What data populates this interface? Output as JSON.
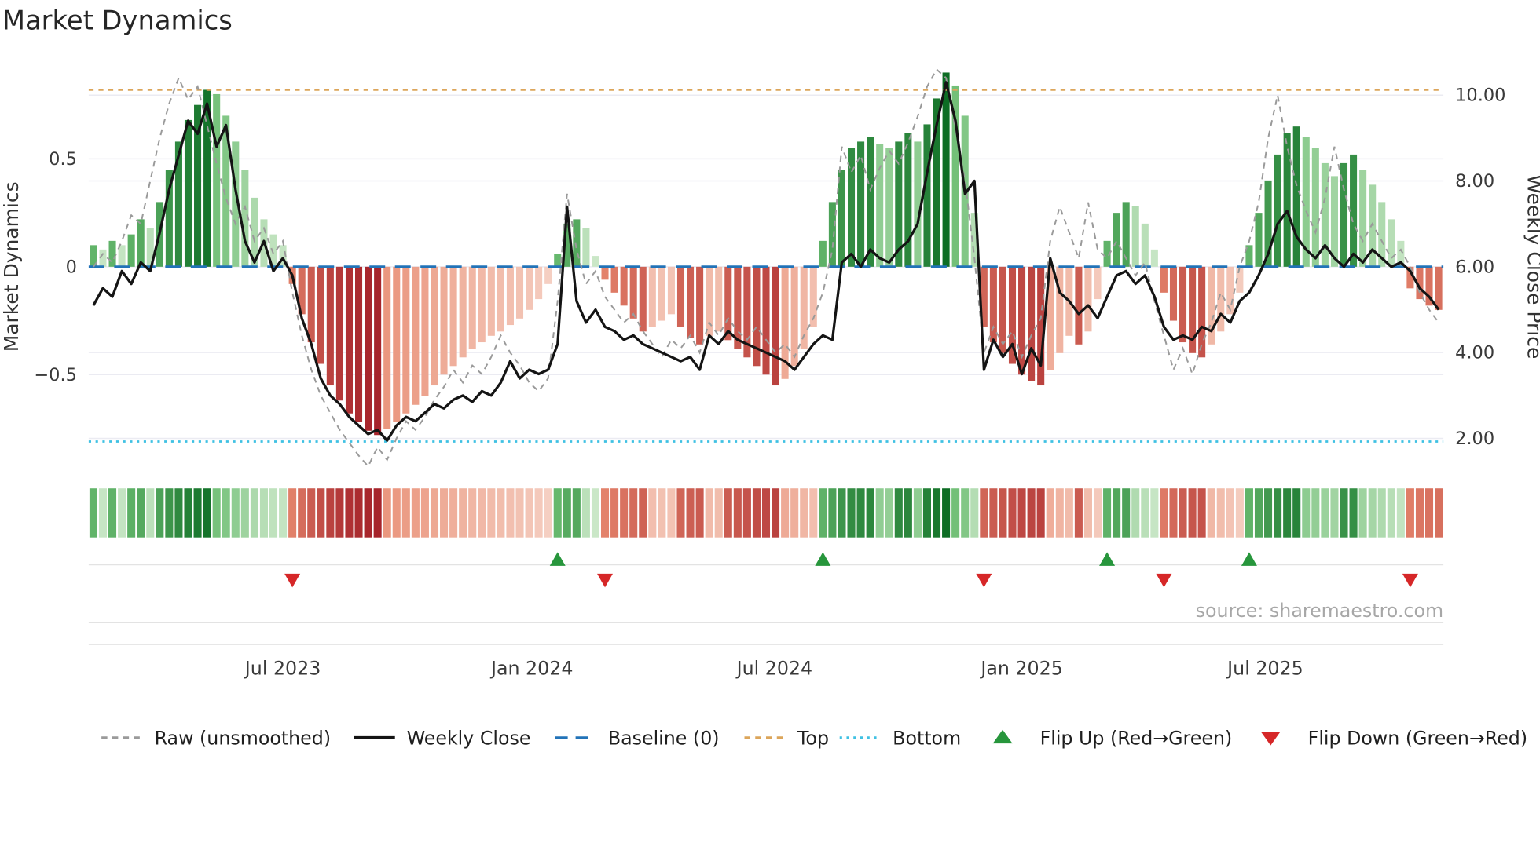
{
  "page_title": "Market Dynamics",
  "source_note": "source: sharemaestro.com",
  "axes": {
    "left_label": "Market Dynamics",
    "left_ticks": [
      {
        "label": "0.5",
        "value": 0.5
      },
      {
        "label": "0",
        "value": 0.0
      },
      {
        "label": "−0.5",
        "value": -0.5
      }
    ],
    "right_label": "Weekly Close Price",
    "right_ticks": [
      {
        "label": "10.00",
        "value": 10
      },
      {
        "label": "8.00",
        "value": 8
      },
      {
        "label": "6.00",
        "value": 6
      },
      {
        "label": "4.00",
        "value": 4
      },
      {
        "label": "2.00",
        "value": 2
      }
    ],
    "x_ticks": [
      {
        "label": "Jul 2023",
        "week": 20
      },
      {
        "label": "Jan 2024",
        "week": 46.3
      },
      {
        "label": "Jul 2024",
        "week": 71.9
      },
      {
        "label": "Jan 2025",
        "week": 98.0
      },
      {
        "label": "Jul 2025",
        "week": 123.7
      }
    ]
  },
  "legend": [
    {
      "label": "Raw (unsmoothed)",
      "swatch": "line-dashed",
      "color": "#9a9a9a"
    },
    {
      "label": "Weekly Close",
      "swatch": "line-solid",
      "color": "#141414"
    },
    {
      "label": "Baseline (0)",
      "swatch": "line-dashed-long",
      "color": "#2273b8"
    },
    {
      "label": "Top",
      "swatch": "line-dashed",
      "color": "#dca55a"
    },
    {
      "label": "Bottom",
      "swatch": "line-dotted",
      "color": "#3fc1e3"
    },
    {
      "label": "Flip Up (Red→Green)",
      "swatch": "triangle-up",
      "color": "#27963c"
    },
    {
      "label": "Flip Down (Green→Red)",
      "swatch": "triangle-down",
      "color": "#d62728"
    }
  ],
  "chart_data": {
    "type": "bar+line",
    "x_unit": "week",
    "x_range": [
      "Feb 2023",
      "Nov 2025"
    ],
    "left_axis_range": [
      -1.0,
      0.95
    ],
    "right_axis_range": [
      1.2,
      10.8
    ],
    "baseline": 0,
    "top_level": 0.82,
    "bottom_level": -0.81,
    "grid": "horizontal-only",
    "legend_position": "bottom",
    "dynamics_bars": [
      0.1,
      0.08,
      0.12,
      0.1,
      0.15,
      0.22,
      0.18,
      0.3,
      0.45,
      0.58,
      0.68,
      0.75,
      0.82,
      0.8,
      0.7,
      0.58,
      0.45,
      0.32,
      0.22,
      0.15,
      0.1,
      -0.08,
      -0.22,
      -0.35,
      -0.45,
      -0.55,
      -0.62,
      -0.68,
      -0.72,
      -0.76,
      -0.78,
      -0.75,
      -0.72,
      -0.68,
      -0.64,
      -0.6,
      -0.55,
      -0.5,
      -0.46,
      -0.42,
      -0.38,
      -0.35,
      -0.32,
      -0.3,
      -0.27,
      -0.24,
      -0.2,
      -0.15,
      -0.08,
      0.06,
      0.2,
      0.22,
      0.18,
      0.05,
      -0.06,
      -0.12,
      -0.18,
      -0.24,
      -0.3,
      -0.28,
      -0.25,
      -0.22,
      -0.28,
      -0.33,
      -0.36,
      -0.32,
      -0.3,
      -0.34,
      -0.38,
      -0.42,
      -0.46,
      -0.5,
      -0.55,
      -0.52,
      -0.46,
      -0.38,
      -0.28,
      0.12,
      0.3,
      0.45,
      0.55,
      0.58,
      0.6,
      0.57,
      0.55,
      0.58,
      0.62,
      0.58,
      0.66,
      0.78,
      0.9,
      0.84,
      0.7,
      0.25,
      -0.28,
      -0.35,
      -0.4,
      -0.45,
      -0.5,
      -0.53,
      -0.55,
      -0.48,
      -0.4,
      -0.32,
      -0.36,
      -0.3,
      -0.15,
      0.12,
      0.25,
      0.3,
      0.28,
      0.2,
      0.08,
      -0.12,
      -0.25,
      -0.35,
      -0.4,
      -0.42,
      -0.36,
      -0.3,
      -0.22,
      -0.12,
      0.1,
      0.25,
      0.4,
      0.52,
      0.62,
      0.65,
      0.6,
      0.55,
      0.48,
      0.42,
      0.48,
      0.52,
      0.45,
      0.38,
      0.3,
      0.22,
      0.12,
      -0.1,
      -0.15,
      -0.18,
      -0.2
    ],
    "weekly_close": [
      5.1,
      5.5,
      5.3,
      5.9,
      5.6,
      6.1,
      5.9,
      6.8,
      7.8,
      8.6,
      9.4,
      9.1,
      9.8,
      8.8,
      9.3,
      7.8,
      6.6,
      6.1,
      6.6,
      5.9,
      6.2,
      5.8,
      4.8,
      4.2,
      3.4,
      3.0,
      2.8,
      2.5,
      2.3,
      2.1,
      2.2,
      1.95,
      2.3,
      2.5,
      2.4,
      2.6,
      2.8,
      2.7,
      2.9,
      3.0,
      2.85,
      3.1,
      3.0,
      3.3,
      3.8,
      3.4,
      3.6,
      3.5,
      3.6,
      4.2,
      7.4,
      5.2,
      4.7,
      5.0,
      4.6,
      4.5,
      4.3,
      4.4,
      4.2,
      4.1,
      4.0,
      3.9,
      3.8,
      3.9,
      3.6,
      4.4,
      4.2,
      4.5,
      4.3,
      4.2,
      4.1,
      4.0,
      3.9,
      3.8,
      3.6,
      3.9,
      4.2,
      4.4,
      4.3,
      6.1,
      6.3,
      6.0,
      6.4,
      6.2,
      6.1,
      6.4,
      6.6,
      7.0,
      8.2,
      9.3,
      10.3,
      9.4,
      7.7,
      8.0,
      3.6,
      4.3,
      3.9,
      4.2,
      3.5,
      4.1,
      3.7,
      6.2,
      5.4,
      5.2,
      4.9,
      5.1,
      4.8,
      5.3,
      5.8,
      5.9,
      5.6,
      5.8,
      5.3,
      4.6,
      4.3,
      4.4,
      4.3,
      4.6,
      4.5,
      4.9,
      4.7,
      5.2,
      5.4,
      5.8,
      6.3,
      7.0,
      7.3,
      6.7,
      6.4,
      6.2,
      6.5,
      6.2,
      6.0,
      6.3,
      6.1,
      6.4,
      6.2,
      6.0,
      6.1,
      5.9,
      5.5,
      5.3,
      5.0
    ],
    "raw_unsmoothed": [
      6.0,
      6.3,
      6.1,
      6.6,
      7.2,
      7.0,
      8.0,
      9.0,
      9.8,
      10.4,
      9.9,
      10.2,
      9.3,
      8.4,
      7.6,
      7.0,
      7.4,
      6.6,
      6.9,
      6.3,
      6.6,
      5.4,
      4.4,
      3.6,
      3.0,
      2.6,
      2.2,
      1.9,
      1.6,
      1.35,
      1.8,
      1.5,
      2.0,
      2.4,
      2.2,
      2.5,
      2.9,
      3.2,
      3.6,
      3.3,
      3.7,
      3.5,
      3.9,
      4.4,
      4.0,
      3.7,
      3.3,
      3.1,
      3.4,
      5.2,
      7.7,
      6.4,
      5.6,
      5.9,
      5.3,
      5.0,
      4.7,
      4.9,
      4.5,
      4.2,
      3.9,
      4.3,
      4.1,
      4.4,
      4.0,
      4.7,
      4.4,
      4.8,
      4.5,
      4.3,
      4.6,
      4.3,
      4.0,
      4.2,
      3.9,
      4.4,
      4.8,
      5.4,
      6.4,
      8.8,
      8.2,
      8.6,
      7.8,
      8.3,
      8.7,
      8.4,
      8.9,
      9.5,
      10.2,
      10.6,
      10.4,
      9.2,
      8.0,
      6.2,
      4.0,
      4.6,
      4.2,
      4.5,
      3.9,
      4.4,
      4.8,
      6.6,
      7.4,
      6.8,
      6.2,
      7.5,
      6.4,
      6.2,
      6.6,
      6.2,
      5.8,
      6.1,
      5.2,
      4.4,
      3.6,
      4.1,
      3.5,
      4.2,
      4.7,
      5.4,
      5.0,
      6.0,
      6.6,
      7.5,
      9.0,
      10.0,
      8.8,
      7.9,
      7.3,
      6.8,
      7.6,
      8.8,
      7.8,
      7.0,
      6.6,
      7.0,
      6.6,
      6.2,
      6.4,
      6.0,
      5.4,
      5.0,
      4.7
    ],
    "flip_up_weeks": [
      49,
      77,
      107,
      122
    ],
    "flip_down_weeks": [
      21,
      54,
      94,
      113,
      139
    ],
    "colors": {
      "green_dark": "#0d6d24",
      "green_mid": "#6cbd72",
      "green_light": "#cfe9cc",
      "red_dark": "#9c1420",
      "red_mid": "#e88a70",
      "red_light": "#f6d6ca",
      "close_line": "#141414",
      "raw_line": "#9a9a9a",
      "baseline": "#2273b8",
      "top_line": "#dca55a",
      "bottom_line": "#3fc1e3",
      "flip_up": "#27963c",
      "flip_down": "#d62728",
      "grid": "#ebebf2"
    }
  }
}
